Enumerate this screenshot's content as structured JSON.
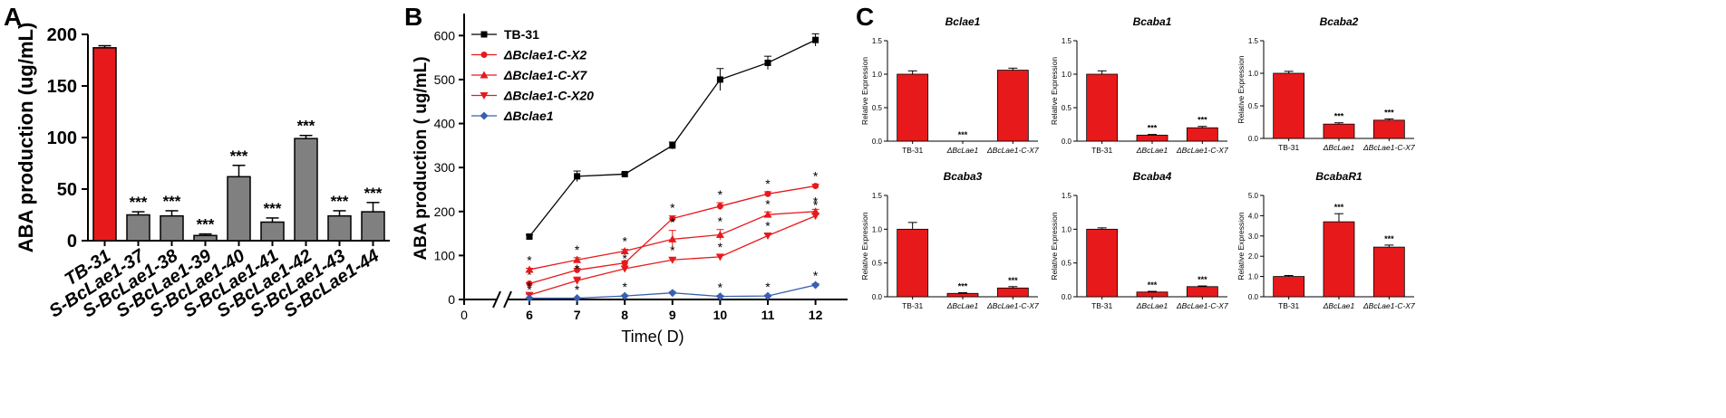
{
  "chart_data": [
    {
      "panel": "A",
      "type": "bar",
      "title": "",
      "ylabel": "ABA production (ug/mL)",
      "ylim": [
        0,
        200
      ],
      "yticks": [
        0,
        50,
        100,
        150,
        200
      ],
      "bar_colors": [
        "#e8191b",
        "#808080",
        "#808080",
        "#808080",
        "#808080",
        "#808080",
        "#808080",
        "#808080",
        "#808080"
      ],
      "categories": [
        "TB-31",
        "S-BcLae1-37",
        "S-BcLae1-38",
        "S-BcLae1-39",
        "S-BcLae1-40",
        "S-BcLae1-41",
        "S-BcLae1-42",
        "S-BcLae1-43",
        "S-BcLae1-44"
      ],
      "values": [
        187,
        25,
        24,
        5,
        62,
        18,
        99,
        24,
        28
      ],
      "errors": [
        2,
        3,
        5,
        1.5,
        11,
        4,
        3,
        5,
        9
      ],
      "significance": [
        "",
        "***",
        "***",
        "***",
        "***",
        "***",
        "***",
        "***",
        "***"
      ]
    },
    {
      "panel": "B",
      "type": "line",
      "xlabel": "Time( D)",
      "ylabel": "ABA production ( ug/mL)",
      "x": [
        6,
        7,
        8,
        9,
        10,
        11,
        12
      ],
      "xticks": [
        0,
        6,
        7,
        8,
        9,
        10,
        11,
        12
      ],
      "ylim": [
        0,
        650
      ],
      "yticks": [
        0,
        100,
        200,
        300,
        400,
        500,
        600
      ],
      "series": [
        {
          "name": "TB-31",
          "color": "#000000",
          "marker": "square",
          "values": [
            143,
            280,
            285,
            350,
            500,
            538,
            590
          ],
          "errors": [
            4,
            12,
            3,
            8,
            25,
            15,
            14
          ],
          "stars": [
            "",
            "",
            "",
            "",
            "",
            "",
            ""
          ]
        },
        {
          "name": "ΔBclae1-C-X2",
          "color": "#e8191b",
          "marker": "circle",
          "values": [
            36,
            67,
            83,
            184,
            212,
            240,
            258
          ],
          "errors": [
            2,
            4,
            4,
            6,
            8,
            5,
            4
          ],
          "stars": [
            "*",
            "*",
            "*",
            "*",
            "*",
            "*",
            "*"
          ]
        },
        {
          "name": "ΔBclae1-C-X7",
          "color": "#e8191b",
          "marker": "triangle-up",
          "values": [
            68,
            90,
            110,
            137,
            147,
            193,
            200
          ],
          "errors": [
            3,
            5,
            4,
            20,
            12,
            6,
            5
          ],
          "stars": [
            "*",
            "*",
            "*",
            "*",
            "*",
            "*",
            "*"
          ]
        },
        {
          "name": "ΔBclae1-C-X20",
          "color": "#e8191b",
          "marker": "triangle-down",
          "values": [
            10,
            43,
            70,
            90,
            97,
            145,
            190
          ],
          "errors": [
            2,
            8,
            5,
            4,
            4,
            4,
            6
          ],
          "stars": [
            "*",
            "*",
            "*",
            "*",
            "*",
            "*",
            "*"
          ]
        },
        {
          "name": "ΔBclae1",
          "color": "#3a5fb0",
          "marker": "diamond",
          "values": [
            3,
            3,
            8,
            15,
            7,
            8,
            33
          ],
          "errors": [
            1,
            1,
            2,
            3,
            2,
            2,
            3
          ],
          "stars": [
            "*",
            "*",
            "*",
            "",
            "*",
            "*",
            "*"
          ]
        }
      ]
    },
    {
      "panel": "C",
      "type": "bar",
      "title": "Bclae1",
      "ylabel": "Relative Expression",
      "categories": [
        "TB-31",
        "ΔBcLae1",
        "ΔBcLae1-C-X7"
      ],
      "values": [
        1.0,
        0.0,
        1.06
      ],
      "errors": [
        0.05,
        0,
        0.03
      ],
      "significance": [
        "",
        "***",
        ""
      ],
      "ylim": [
        0,
        1.5
      ],
      "yticks": [
        "0.0",
        "0.5",
        "1.0",
        "1.5"
      ]
    },
    {
      "panel": "C",
      "type": "bar",
      "title": "Bcaba1",
      "ylabel": "Relative Expression",
      "categories": [
        "TB-31",
        "ΔBcLae1",
        "ΔBcLae1-C-X7"
      ],
      "values": [
        1.0,
        0.09,
        0.2
      ],
      "errors": [
        0.05,
        0.01,
        0.02
      ],
      "significance": [
        "",
        "***",
        "***"
      ],
      "ylim": [
        0,
        1.5
      ],
      "yticks": [
        "0.0",
        "0.5",
        "1.0",
        "1.5"
      ]
    },
    {
      "panel": "C",
      "type": "bar",
      "title": "Bcaba2",
      "ylabel": "Relative Expression",
      "categories": [
        "TB-31",
        "ΔBcLae1",
        "ΔBcLae1-C-X7"
      ],
      "values": [
        1.0,
        0.22,
        0.28
      ],
      "errors": [
        0.03,
        0.02,
        0.02
      ],
      "significance": [
        "",
        "***",
        "***"
      ],
      "ylim": [
        0,
        1.5
      ],
      "yticks": [
        "0.0",
        "0.5",
        "1.0",
        "1.5"
      ]
    },
    {
      "panel": "C",
      "type": "bar",
      "title": "Bcaba3",
      "ylabel": "Relative Expression",
      "categories": [
        "TB-31",
        "ΔBcLae1",
        "ΔBcLae1-C-X7"
      ],
      "values": [
        1.0,
        0.05,
        0.13
      ],
      "errors": [
        0.1,
        0.01,
        0.02
      ],
      "significance": [
        "",
        "***",
        "***"
      ],
      "ylim": [
        0,
        1.5
      ],
      "yticks": [
        "0.0",
        "0.5",
        "1.0",
        "1.5"
      ]
    },
    {
      "panel": "C",
      "type": "bar",
      "title": "Bcaba4",
      "ylabel": "Relative Expression",
      "categories": [
        "TB-31",
        "ΔBcLae1",
        "ΔBcLae1-C-X7"
      ],
      "values": [
        1.0,
        0.07,
        0.15
      ],
      "errors": [
        0.02,
        0.01,
        0.01
      ],
      "significance": [
        "",
        "***",
        "***"
      ],
      "ylim": [
        0,
        1.5
      ],
      "yticks": [
        "0.0",
        "0.5",
        "1.0",
        "1.5"
      ]
    },
    {
      "panel": "C",
      "type": "bar",
      "title": "BcabaR1",
      "ylabel": "Relative Expression",
      "categories": [
        "TB-31",
        "ΔBcLae1",
        "ΔBcLae1-C-X7"
      ],
      "values": [
        1.0,
        3.7,
        2.45
      ],
      "errors": [
        0.05,
        0.4,
        0.1
      ],
      "significance": [
        "",
        "***",
        "***"
      ],
      "ylim": [
        0,
        5.0
      ],
      "yticks": [
        "0.0",
        "1.0",
        "2.0",
        "3.0",
        "4.0",
        "5.0"
      ]
    }
  ],
  "panel_labels": {
    "a": "A",
    "b": "B",
    "c": "C"
  },
  "colors": {
    "red": "#e8191b",
    "gray": "#808080",
    "black": "#000000",
    "blue": "#3a5fb0"
  }
}
